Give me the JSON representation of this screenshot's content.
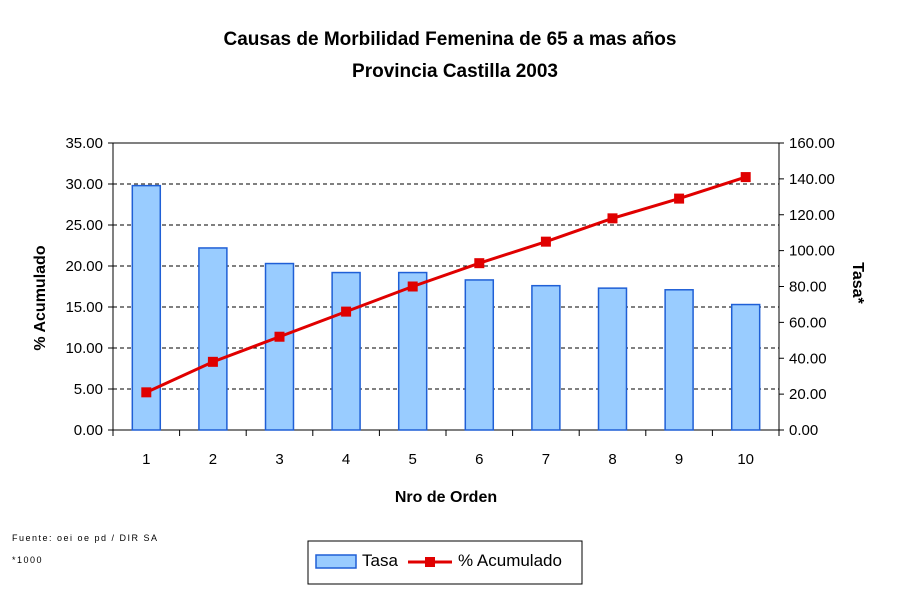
{
  "chart_data": {
    "type": "bar",
    "title": "Causas de Morbilidad Femenina de 65 a mas años",
    "subtitle": "Provincia Castilla 2003",
    "xlabel": "Nro de Orden",
    "ylabel_left": "% Acumulado",
    "ylabel_right": "Tasa*",
    "categories": [
      "1",
      "2",
      "3",
      "4",
      "5",
      "6",
      "7",
      "8",
      "9",
      "10"
    ],
    "ylim_left": [
      0,
      35
    ],
    "yticks_left": [
      "0.00",
      "5.00",
      "10.00",
      "15.00",
      "20.00",
      "25.00",
      "30.00",
      "35.00"
    ],
    "ylim_right": [
      0,
      160
    ],
    "yticks_right": [
      "0.00",
      "20.00",
      "40.00",
      "60.00",
      "80.00",
      "100.00",
      "120.00",
      "140.00",
      "160.00"
    ],
    "grid": true,
    "legend_position": "bottom",
    "series": [
      {
        "name": "Tasa",
        "type": "bar",
        "axis": "left",
        "color": "#99ccff",
        "edge_color": "#1f5fd6",
        "values": [
          29.8,
          22.2,
          20.3,
          19.2,
          19.2,
          18.3,
          17.6,
          17.3,
          17.1,
          15.3
        ]
      },
      {
        "name": "% Acumulado",
        "type": "line",
        "axis": "right",
        "color": "#e00000",
        "marker": "square",
        "values": [
          21,
          38,
          52,
          66,
          80,
          93,
          105,
          118,
          129,
          141
        ]
      }
    ]
  },
  "notes": {
    "source": "Fuente: oei oe pd / DIR SA",
    "footnote": "*1000"
  }
}
